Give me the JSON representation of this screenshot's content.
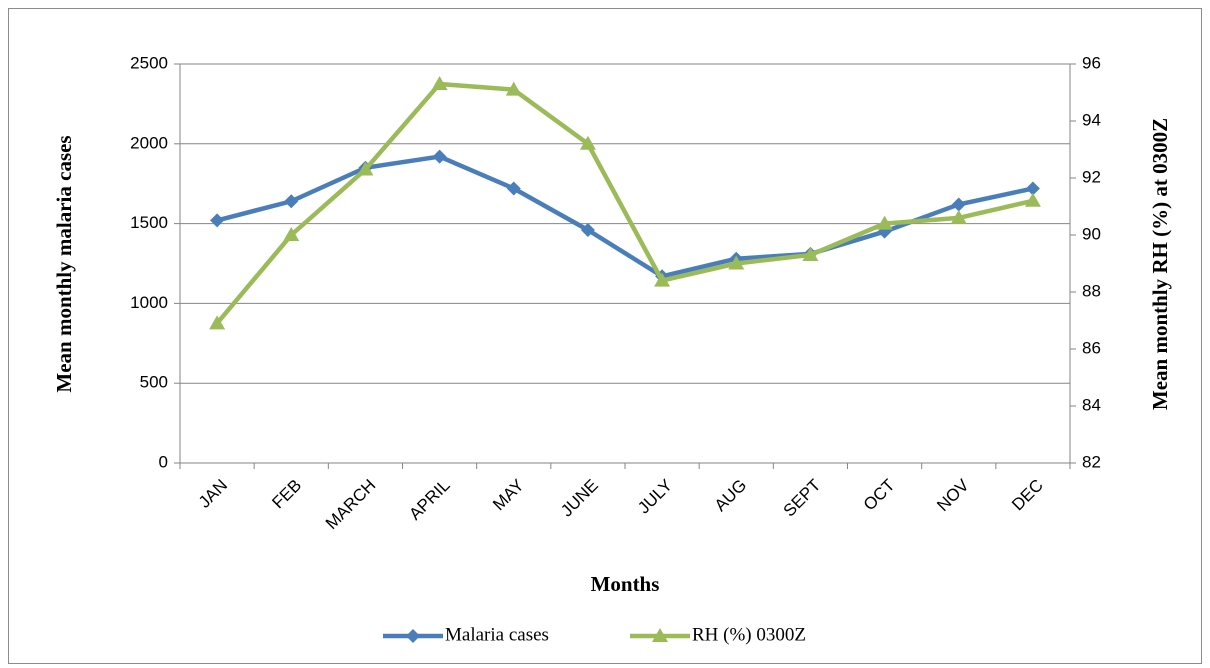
{
  "chart_data": {
    "type": "line",
    "x_label": "Months",
    "y_label": "Mean monthly malaria cases",
    "y2_label": "Mean monthly RH (%) at 0300Z",
    "categories": [
      "JAN",
      "FEB",
      "MARCH",
      "APRIL",
      "MAY",
      "JUNE",
      "JULY",
      "AUG",
      "SEPT",
      "OCT",
      "NOV",
      "DEC"
    ],
    "series": [
      {
        "name": "Malaria cases",
        "color": "#4a7ebb",
        "marker": "diamond",
        "values": [
          1520,
          1640,
          1850,
          1920,
          1720,
          1460,
          1170,
          1280,
          1310,
          1450,
          1620,
          1720
        ]
      },
      {
        "name": "RH (%) 0300Z",
        "color": "#9bbb59",
        "marker": "triangle",
        "axis": "y2",
        "values": [
          86.9,
          90.0,
          92.3,
          95.3,
          95.1,
          93.2,
          88.4,
          89.0,
          89.3,
          90.4,
          90.6,
          91.2
        ]
      }
    ],
    "ylim": [
      0,
      2500
    ],
    "yticks": [
      0,
      500,
      1000,
      1500,
      2000,
      2500
    ],
    "y2lim": [
      82,
      96
    ],
    "y2ticks": [
      82,
      84,
      86,
      88,
      90,
      92,
      94,
      96
    ],
    "grid": true,
    "legend": "bottom"
  }
}
